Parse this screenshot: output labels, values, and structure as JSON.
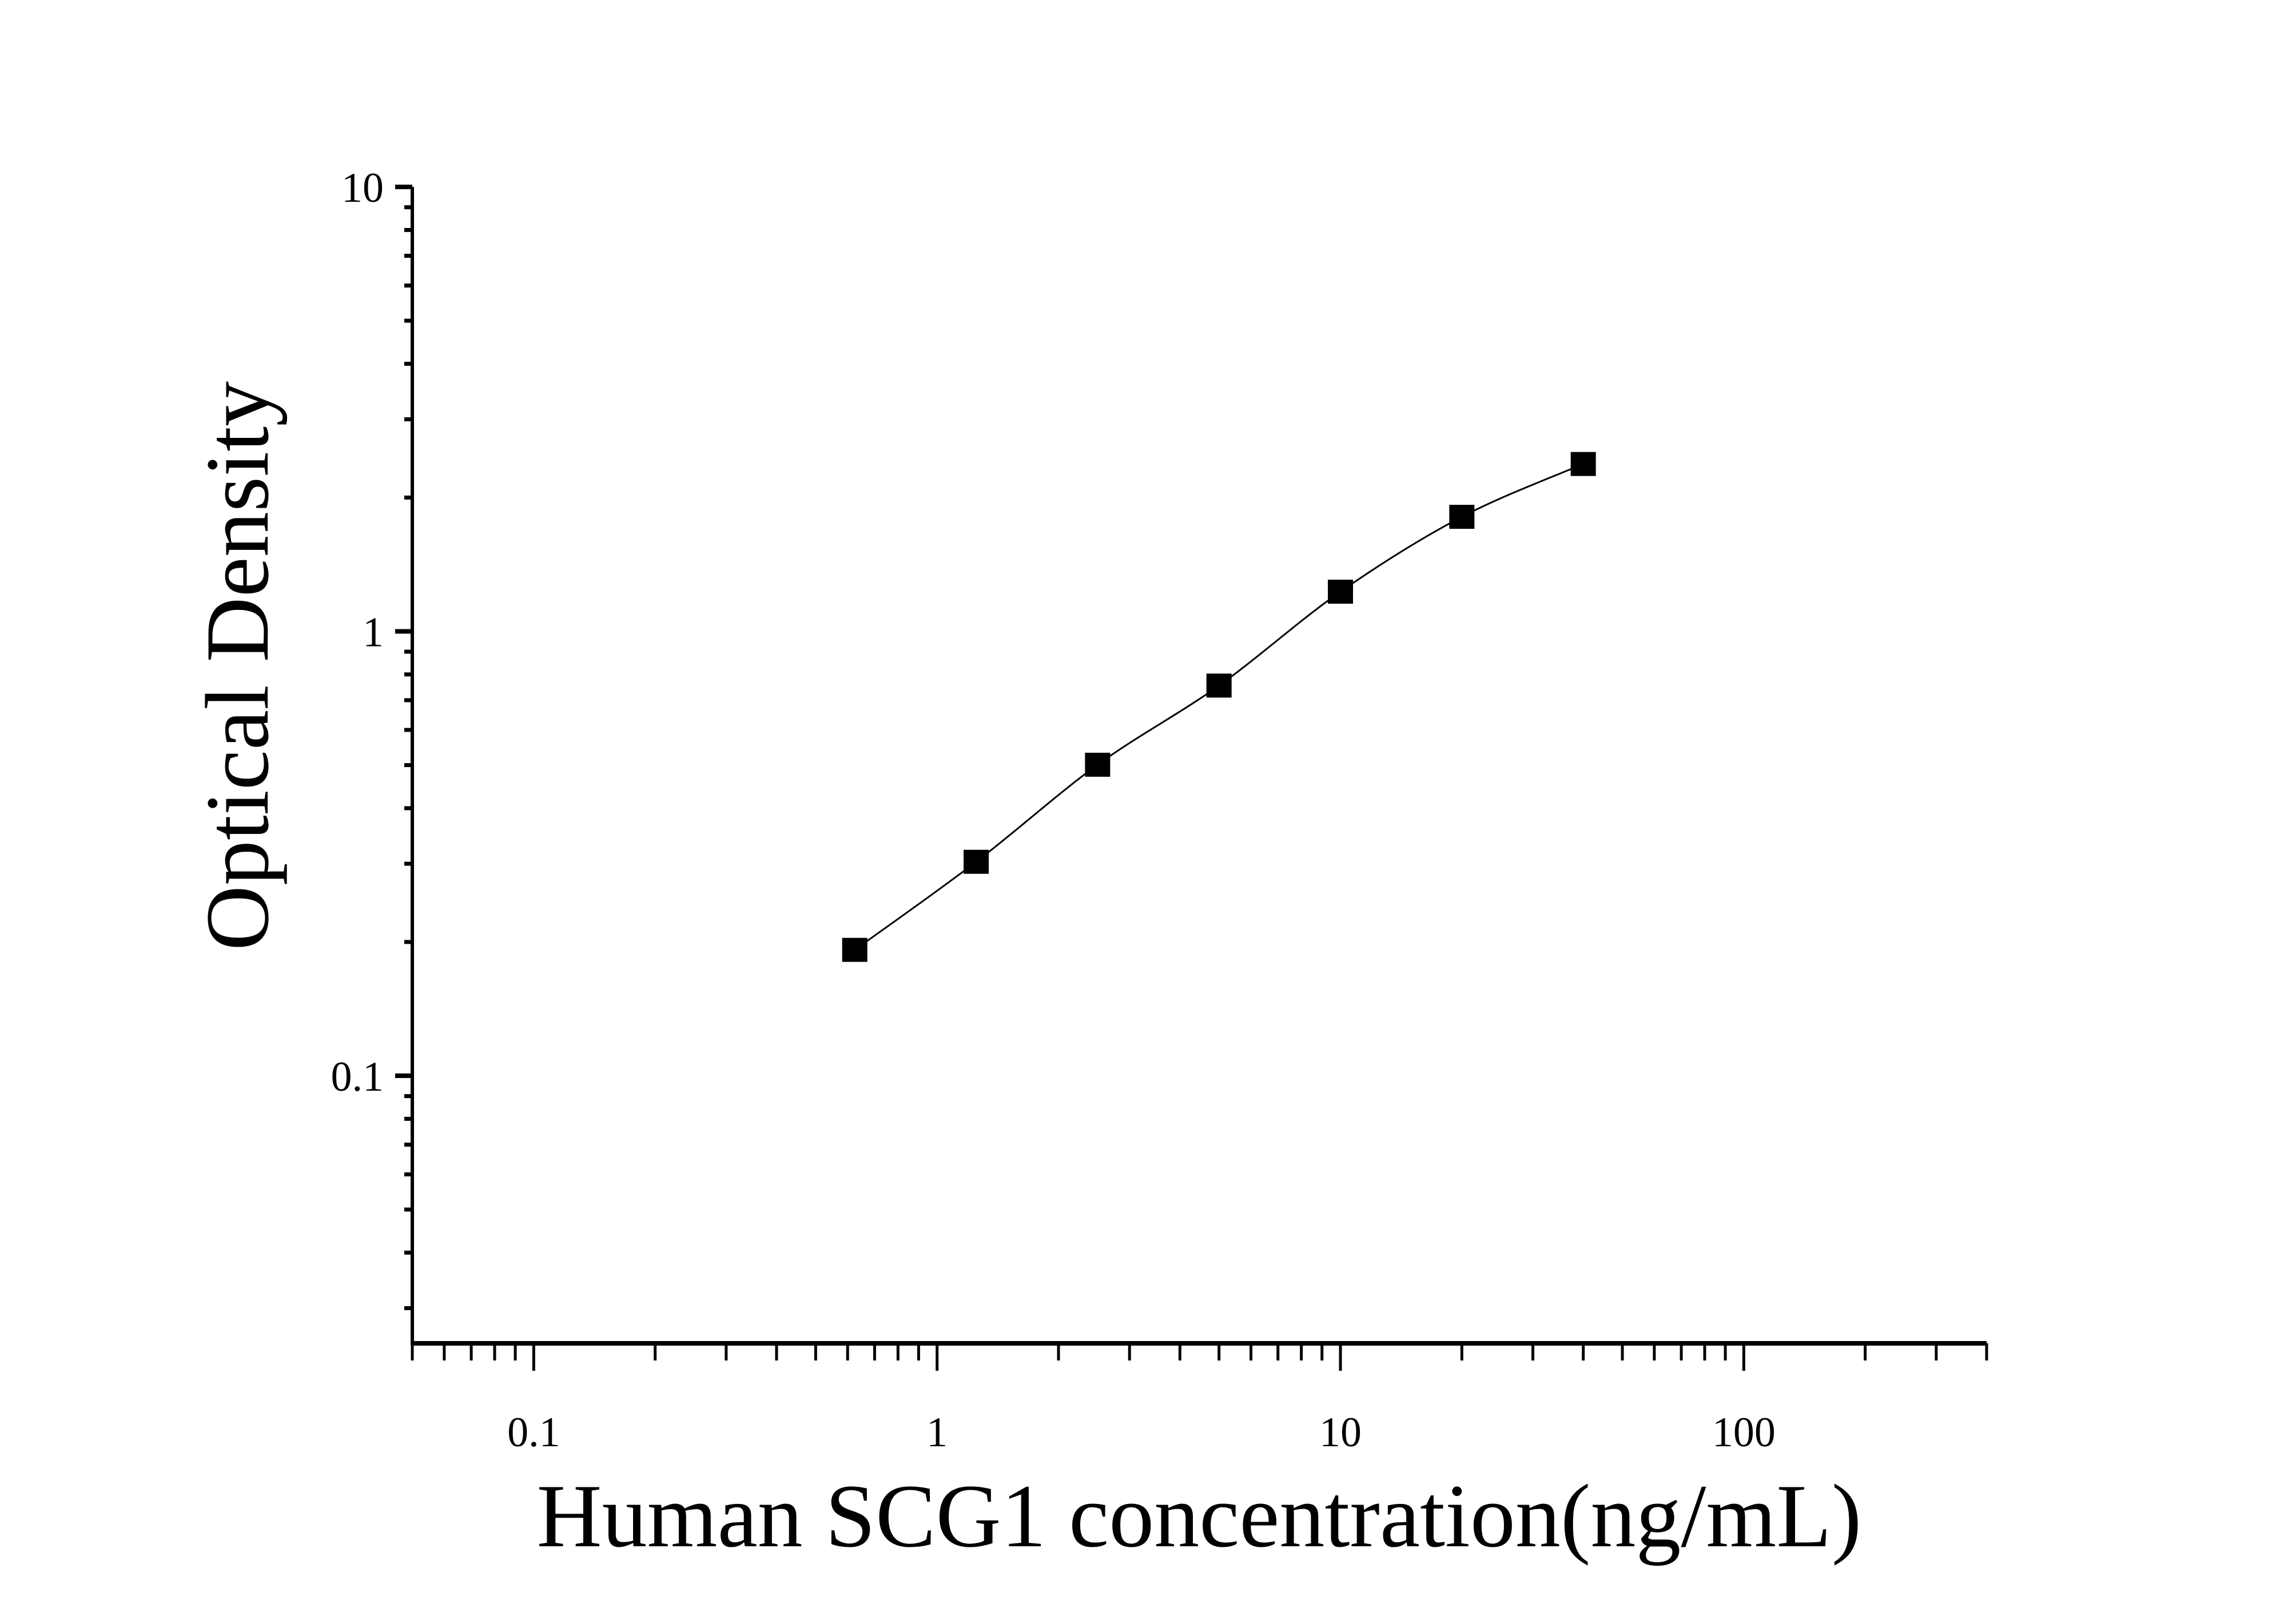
{
  "chart_data": {
    "type": "scatter",
    "title": "",
    "xlabel": "Human SCG1 concentration(ng/mL)",
    "ylabel": "Optical Density",
    "x_scale": "log",
    "y_scale": "log",
    "xlim": [
      0.05,
      400
    ],
    "ylim": [
      0.025,
      10
    ],
    "x_ticks": [
      0.1,
      1,
      10,
      100
    ],
    "x_tick_labels": [
      "0.1",
      "1",
      "10",
      "100"
    ],
    "y_ticks": [
      0.1,
      1,
      10
    ],
    "y_tick_labels": [
      "0.1",
      "1",
      "10"
    ],
    "grid": false,
    "legend": "none",
    "series": [
      {
        "x": [
          0.625,
          1.25,
          2.5,
          5,
          10,
          20,
          40
        ],
        "y": [
          0.192,
          0.303,
          0.501,
          0.755,
          1.228,
          1.81,
          2.38
        ],
        "marker": "square",
        "color": "#000000",
        "fit_line": true
      }
    ]
  }
}
